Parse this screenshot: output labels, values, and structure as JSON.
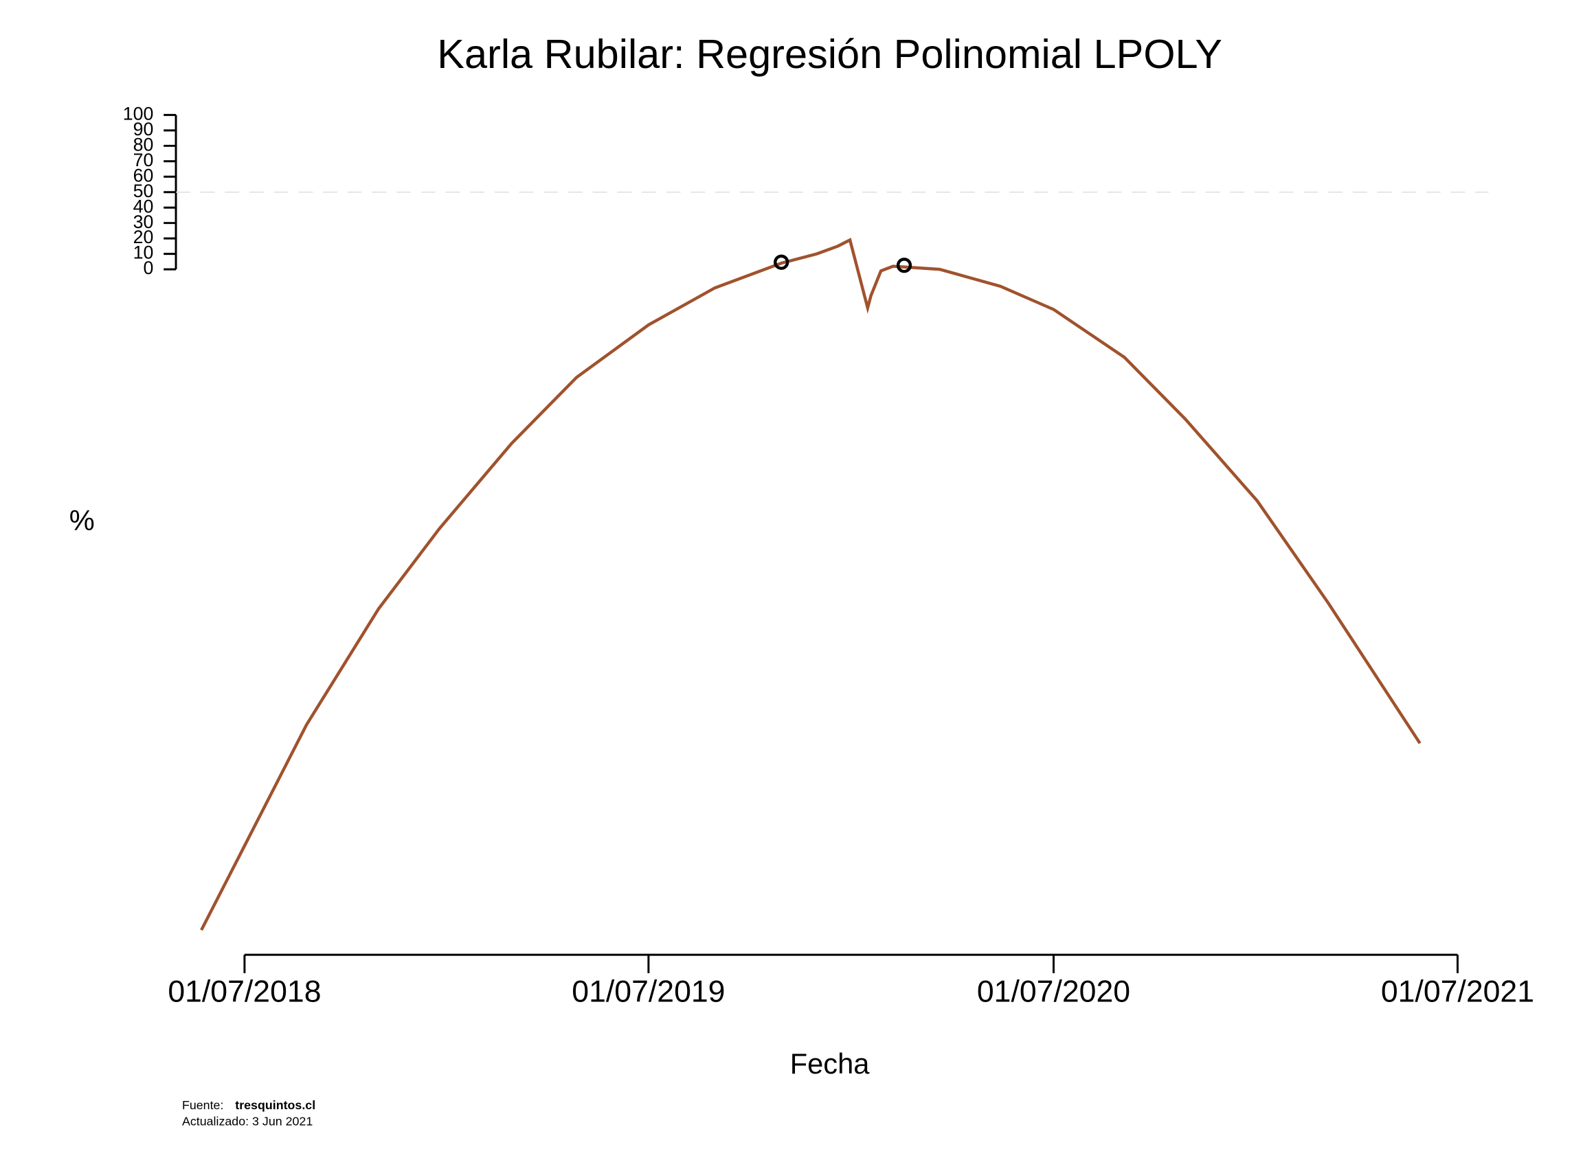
{
  "chart_data": {
    "type": "line",
    "title": "Karla Rubilar: Regresión Polinomial LPOLY",
    "x_label": "Fecha",
    "y_label": "%",
    "xlim": [
      "30/04/2018",
      "29/07/2021"
    ],
    "xticks": [
      "01/07/2018",
      "01/07/2019",
      "01/07/2020",
      "01/07/2021"
    ],
    "ylim": [
      -444,
      105
    ],
    "yticks": [
      0,
      10,
      20,
      30,
      40,
      50,
      60,
      70,
      80,
      90,
      100
    ],
    "reference_line": 50,
    "series": [
      {
        "kind": "line",
        "color": "#a0522d",
        "x": [
          "23/05/2018",
          "02/07/2018",
          "26/08/2018",
          "30/10/2018",
          "24/12/2018",
          "27/02/2019",
          "27/04/2019",
          "01/07/2019",
          "30/08/2019",
          "29/10/2019",
          "30/11/2019",
          "19/12/2019",
          "30/12/2019",
          "15/01/2020",
          "18/01/2020",
          "27/01/2020",
          "07/02/2020",
          "20/03/2020",
          "14/05/2020",
          "01/07/2020",
          "03/09/2020",
          "28/10/2020",
          "01/01/2021",
          "06/03/2021",
          "28/05/2021"
        ],
        "values": [
          -428,
          -372,
          -295,
          -220,
          -168,
          -113,
          -70,
          -36,
          -12,
          4,
          10,
          15,
          19,
          -25,
          -17,
          -1,
          2,
          0,
          -11,
          -26,
          -57,
          -97,
          -150,
          -216,
          -307
        ]
      },
      {
        "kind": "points",
        "color": "#000000",
        "x": [
          "29/10/2019",
          "17/02/2020"
        ],
        "values": [
          4.6,
          2.6
        ]
      }
    ],
    "footer": {
      "source_label": "Fuente:",
      "source": "tresquintos.cl",
      "updated": "Actualizado: 3 Jun 2021"
    }
  }
}
